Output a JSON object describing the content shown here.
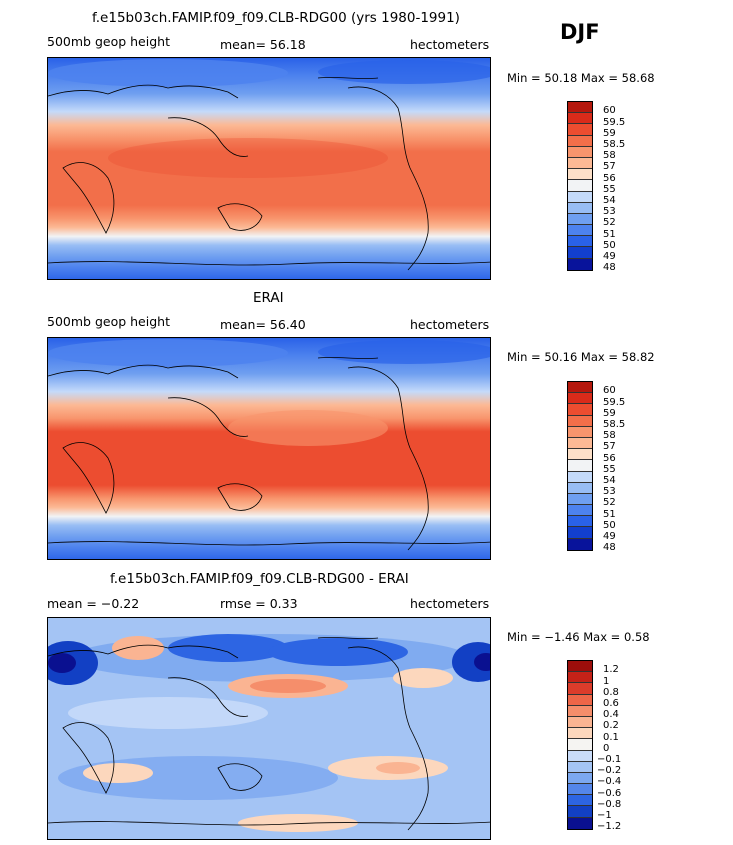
{
  "season": "DJF",
  "colors": {
    "full": [
      "#b5180d",
      "#d92b1a",
      "#ec4d30",
      "#f26f4a",
      "#f8956d",
      "#fcb995",
      "#fde0c8",
      "#f2f3f5",
      "#c4dafa",
      "#98bdf4",
      "#6f9ff0",
      "#4d82ee",
      "#2a62e8",
      "#123fce",
      "#08139b"
    ],
    "diff": [
      "#9c0e0b",
      "#c52218",
      "#dc3c2b",
      "#ee6648",
      "#f58e6b",
      "#fab492",
      "#fcd7bd",
      "#f5f4f2",
      "#c9dcf9",
      "#a4c4f4",
      "#7ca8f0",
      "#5486ea",
      "#2d65e3",
      "#1240c4",
      "#0a1090"
    ]
  },
  "panels": [
    {
      "title": "f.e15b03ch.FAMIP.f09_f09.CLB-RDG00 (yrs 1980-1991)",
      "left_label": "500mb geop height",
      "center_label": "mean=  56.18",
      "right_label": "hectometers",
      "minmax": "Min =  50.18 Max =  58.68",
      "chart_data": {
        "type": "heatmap",
        "variable": "500mb geop height",
        "units": "hectometers",
        "mean": 56.18,
        "min": 50.18,
        "max": 58.68,
        "colorbar_levels": [
          "60",
          "59.5",
          "59",
          "58.5",
          "58",
          "57",
          "56",
          "55",
          "54",
          "53",
          "52",
          "51",
          "50",
          "49",
          "48"
        ]
      }
    },
    {
      "title": "ERAI",
      "left_label": "500mb geop height",
      "center_label": "mean=  56.40",
      "right_label": "hectometers",
      "minmax": "Min =  50.16 Max =  58.82",
      "chart_data": {
        "type": "heatmap",
        "variable": "500mb geop height",
        "units": "hectometers",
        "mean": 56.4,
        "min": 50.16,
        "max": 58.82,
        "colorbar_levels": [
          "60",
          "59.5",
          "59",
          "58.5",
          "58",
          "57",
          "56",
          "55",
          "54",
          "53",
          "52",
          "51",
          "50",
          "49",
          "48"
        ]
      }
    },
    {
      "title": "f.e15b03ch.FAMIP.f09_f09.CLB-RDG00 - ERAI",
      "left_label": "mean =  −0.22",
      "center_label": "rmse =   0.33",
      "right_label": "hectometers",
      "minmax": "Min =  −1.46 Max =   0.58",
      "chart_data": {
        "type": "heatmap",
        "variable": "500mb geop height difference",
        "units": "hectometers",
        "mean": -0.22,
        "rmse": 0.33,
        "min": -1.46,
        "max": 0.58,
        "colorbar_levels": [
          "1.2",
          "1",
          "0.8",
          "0.6",
          "0.4",
          "0.2",
          "0.1",
          "0",
          "−0.1",
          "−0.2",
          "−0.4",
          "−0.6",
          "−0.8",
          "−1",
          "−1.2"
        ]
      }
    }
  ]
}
